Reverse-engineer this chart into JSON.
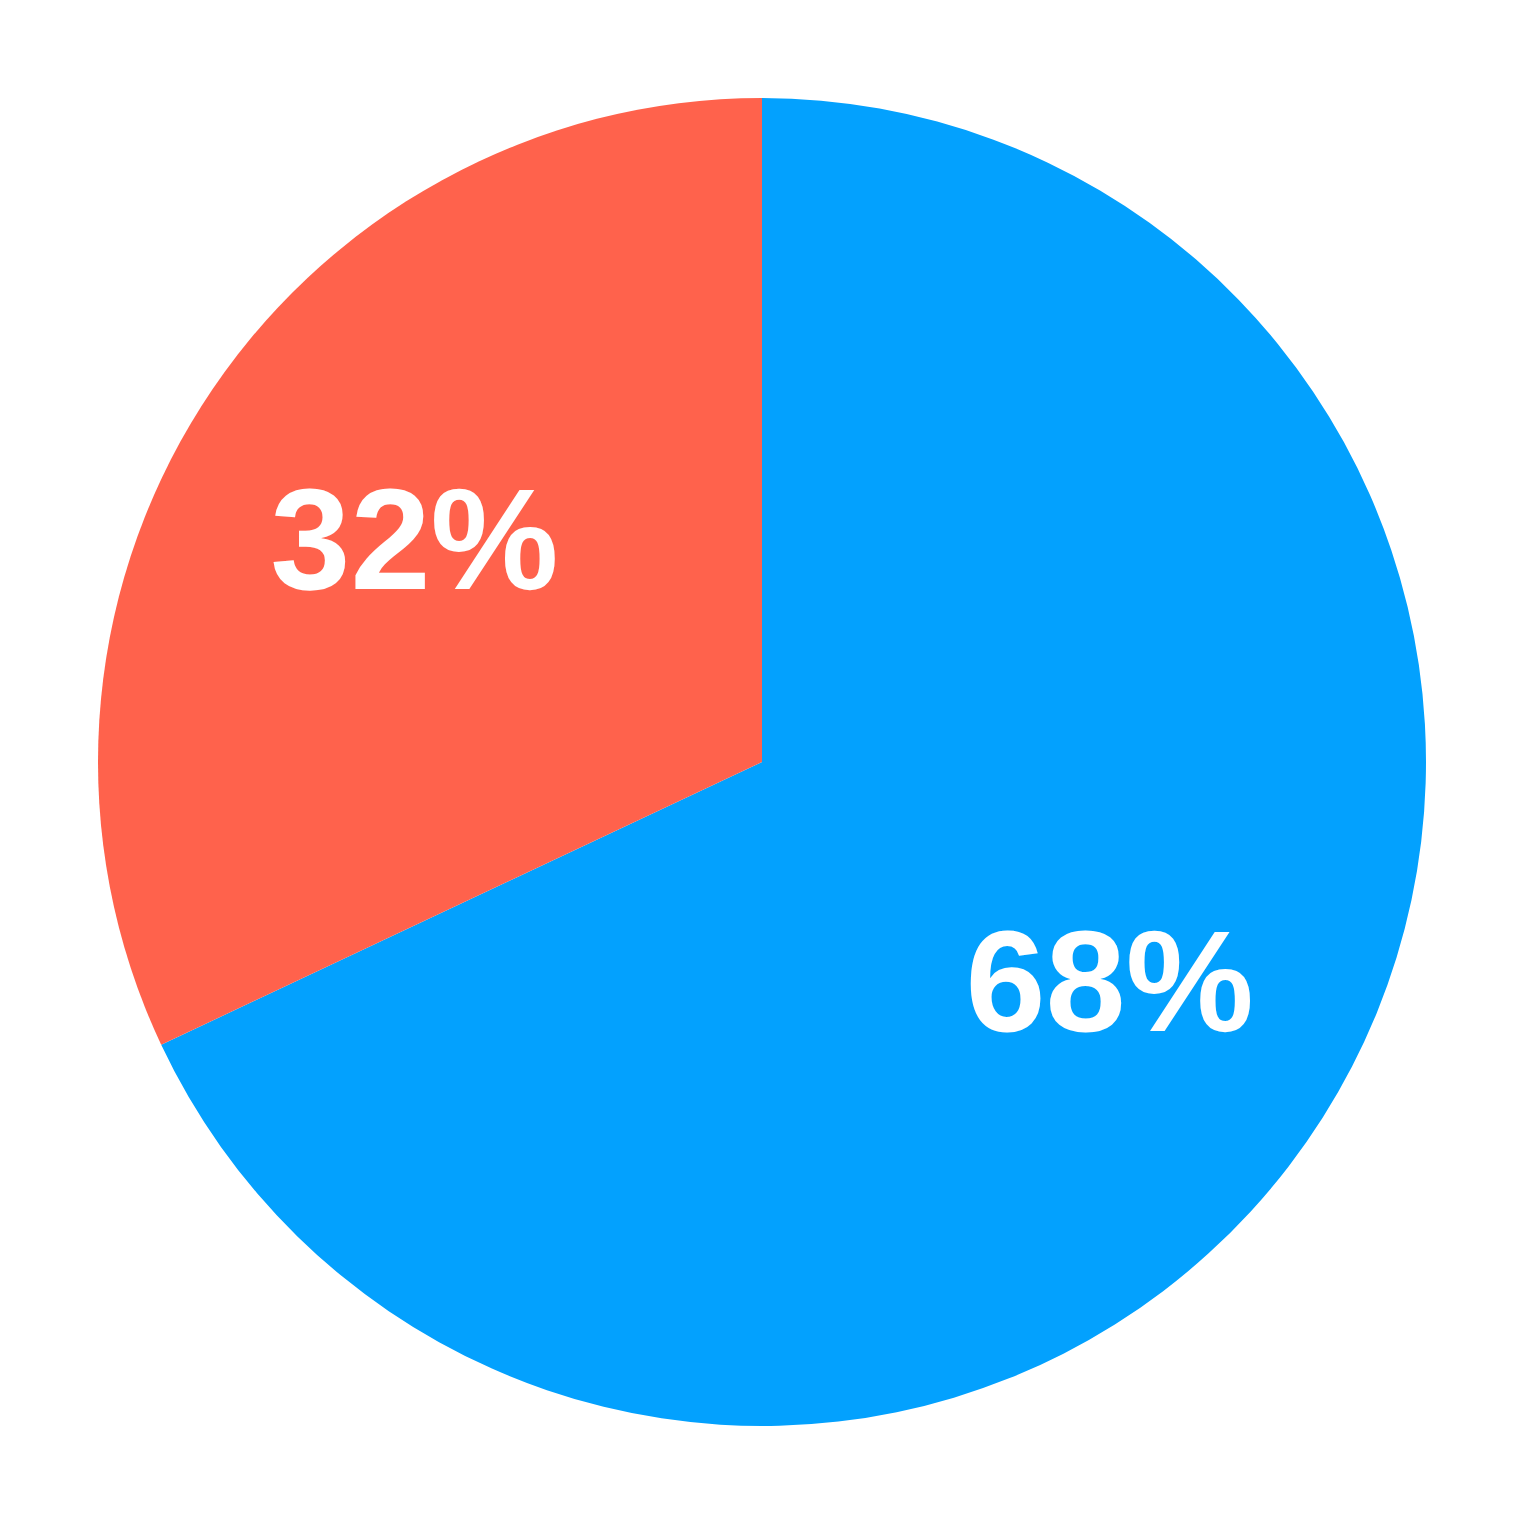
{
  "chart_data": {
    "type": "pie",
    "categories": [
      null,
      null
    ],
    "values": [
      68,
      32
    ],
    "colors": [
      "#03a1fe",
      "#ff624c"
    ],
    "value_labels": [
      "68%",
      "32%"
    ]
  }
}
